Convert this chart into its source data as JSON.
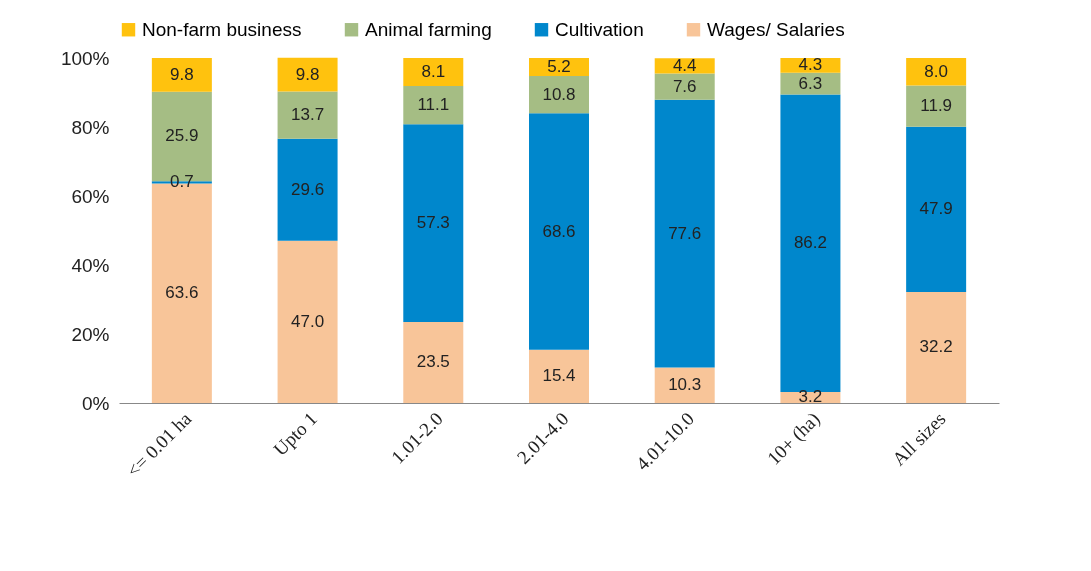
{
  "chart_data": {
    "type": "bar",
    "stacked": true,
    "legend": "top",
    "grid": false,
    "categories": [
      "<= 0.01 ha",
      "Upto 1",
      "1.01-2.0",
      "2.01-4.0",
      "4.01-10.0",
      "10+ (ha)",
      "All sizes"
    ],
    "ylim": [
      0,
      100
    ],
    "yticks": [
      {
        "value": 0,
        "label": "0%"
      },
      {
        "value": 20,
        "label": "20%"
      },
      {
        "value": 40,
        "label": "40%"
      },
      {
        "value": 60,
        "label": "60%"
      },
      {
        "value": 80,
        "label": "80%"
      },
      {
        "value": 100,
        "label": "100%"
      }
    ],
    "series": [
      {
        "name": "Wages/ Salaries",
        "color": "#f8c599",
        "values": [
          63.6,
          47.0,
          23.5,
          15.4,
          10.3,
          3.2,
          32.2
        ],
        "value_labels": [
          "63.6",
          "47.0",
          "23.5",
          "15.4",
          "10.3",
          "3.2",
          "32.2"
        ]
      },
      {
        "name": "Cultivation",
        "color": "#0087cc",
        "values": [
          0.7,
          29.6,
          57.3,
          68.6,
          77.6,
          86.2,
          47.9
        ],
        "value_labels": [
          "0.7",
          "29.6",
          "57.3",
          "68.6",
          "77.6",
          "86.2",
          "47.9"
        ]
      },
      {
        "name": "Animal farming",
        "color": "#a5bd84",
        "values": [
          25.9,
          13.7,
          11.1,
          10.8,
          7.6,
          6.3,
          11.9
        ],
        "value_labels": [
          "25.9",
          "13.7",
          "11.1",
          "10.8",
          "7.6",
          "6.3",
          "11.9"
        ]
      },
      {
        "name": "Non-farm business",
        "color": "#ffc20e",
        "values": [
          9.8,
          9.8,
          8.1,
          5.2,
          4.4,
          4.3,
          8.0
        ],
        "value_labels": [
          "9.8",
          "9.8",
          "8.1",
          "5.2",
          "4.4",
          "4.3",
          "8.0"
        ]
      }
    ]
  }
}
